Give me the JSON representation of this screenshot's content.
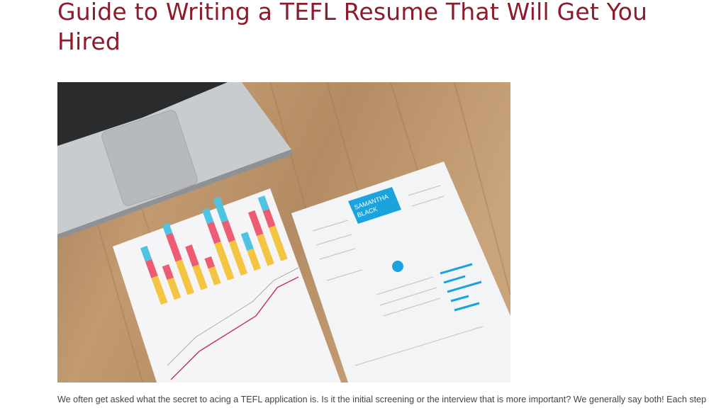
{
  "article": {
    "title": "Guide to Writing a TEFL Resume That Will Get You Hired",
    "hero_image": {
      "alt_subject": "laptop-and-resume-on-wooden-desk",
      "photo_lettering": {
        "name_first": "SAMANTHA",
        "name_last": "BLACK"
      }
    },
    "intro": "We often get asked what the secret to acing a TEFL application is. Is it the initial screening or the interview that is more important? We generally say both! Each step"
  },
  "colors": {
    "title": "#8c1c2c",
    "body_text": "#444444",
    "resume_accent": "#1aa3dc"
  }
}
